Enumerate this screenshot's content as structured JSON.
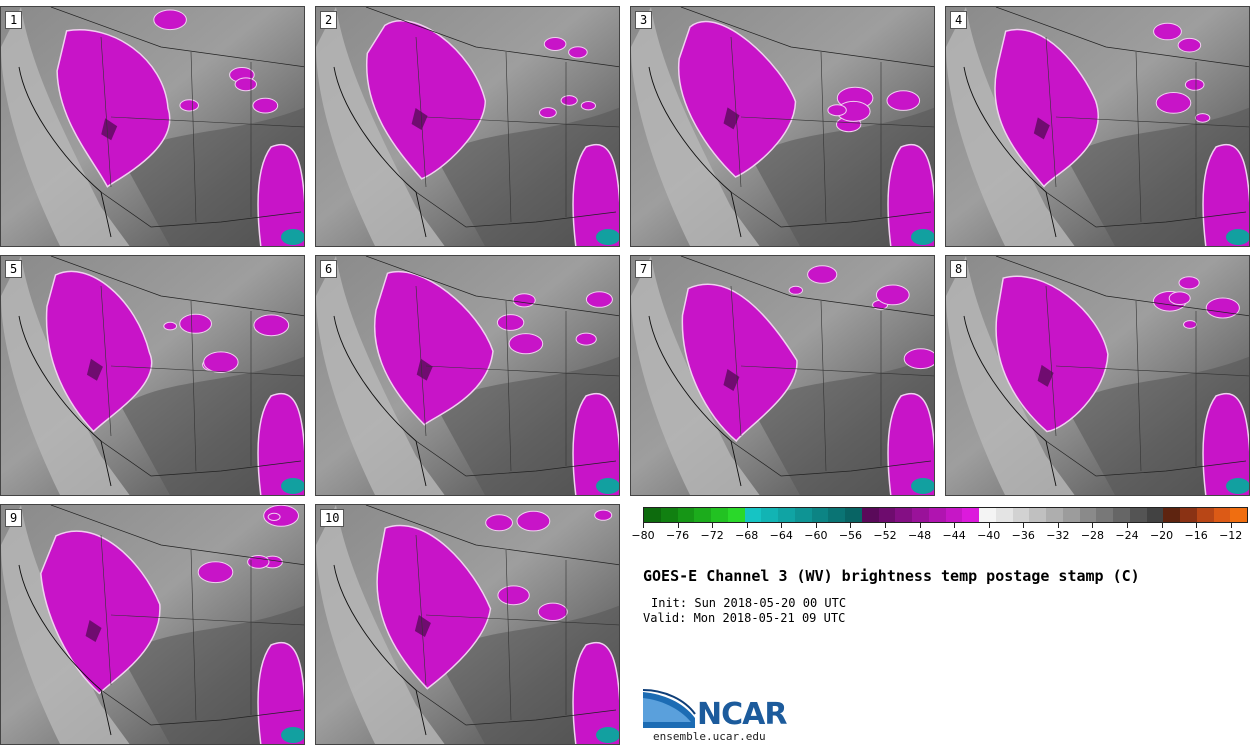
{
  "title": "GOES-E Channel 3 (WV) brightness temp postage stamp (C)",
  "init": "Init: Sun 2018-05-20 00 UTC",
  "valid": "Valid: Mon 2018-05-21 09 UTC",
  "org": "NCAR",
  "website": "ensemble.ucar.edu",
  "panels": [
    {
      "label": "1"
    },
    {
      "label": "2"
    },
    {
      "label": "3"
    },
    {
      "label": "4"
    },
    {
      "label": "5"
    },
    {
      "label": "6"
    },
    {
      "label": "7"
    },
    {
      "label": "8"
    },
    {
      "label": "9"
    },
    {
      "label": "10"
    }
  ],
  "colorbar": {
    "min": -80,
    "max": -10,
    "step": 2,
    "tick_labels": [
      "-80",
      "-76",
      "-72",
      "-68",
      "-64",
      "-60",
      "-56",
      "-52",
      "-48",
      "-44",
      "-40",
      "-36",
      "-32",
      "-28",
      "-24",
      "-20",
      "-16",
      "-12"
    ],
    "colors": [
      "#0d6b0d",
      "#118011",
      "#169616",
      "#1cac1c",
      "#22c222",
      "#2ad82a",
      "#16c4c4",
      "#12b4b4",
      "#10a4a4",
      "#0e9494",
      "#0c8484",
      "#0a7474",
      "#086464",
      "#5a0a5a",
      "#6e0c6e",
      "#840f84",
      "#9a129a",
      "#b014b0",
      "#c617c6",
      "#dc1adc",
      "#f4f4f4",
      "#e4e4e4",
      "#d2d2d2",
      "#c0c0c0",
      "#aeaeae",
      "#9c9c9c",
      "#8a8a8a",
      "#787878",
      "#666666",
      "#545454",
      "#424242",
      "#5e2410",
      "#8a3214",
      "#b84616",
      "#dc5a16",
      "#f06e10"
    ]
  }
}
